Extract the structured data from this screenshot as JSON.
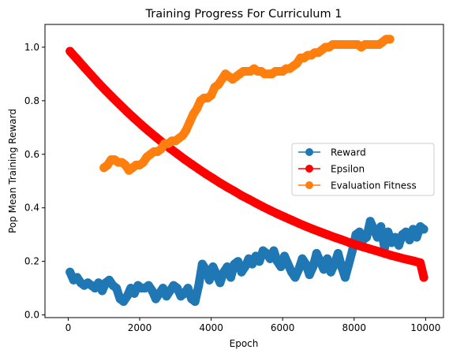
{
  "chart_data": {
    "type": "line",
    "title": "Training Progress For Curriculum 1",
    "xlabel": "Epoch",
    "ylabel": "Pop Mean Training Reward",
    "xlim": [
      -650,
      10500
    ],
    "ylim": [
      -0.01,
      1.085
    ],
    "xticks": [
      0,
      2000,
      4000,
      6000,
      8000,
      10000
    ],
    "xtick_labels": [
      "0",
      "2000",
      "4000",
      "6000",
      "8000",
      "10000"
    ],
    "yticks": [
      0.0,
      0.2,
      0.4,
      0.6,
      0.8,
      1.0
    ],
    "ytick_labels": [
      "0.0",
      "0.2",
      "0.4",
      "0.6",
      "0.8",
      "1.0"
    ],
    "grid": false,
    "legend_position": "center-right",
    "marker": "circle",
    "series": [
      {
        "name": "Reward",
        "color": "#1f77b4",
        "x": [
          50,
          150,
          250,
          350,
          450,
          550,
          650,
          750,
          850,
          950,
          1050,
          1150,
          1250,
          1350,
          1450,
          1550,
          1650,
          1750,
          1850,
          1950,
          2050,
          2150,
          2250,
          2350,
          2450,
          2550,
          2650,
          2750,
          2850,
          2950,
          3050,
          3150,
          3250,
          3350,
          3450,
          3550,
          3650,
          3750,
          3850,
          3950,
          4050,
          4150,
          4250,
          4350,
          4450,
          4550,
          4650,
          4750,
          4850,
          4950,
          5050,
          5150,
          5250,
          5350,
          5450,
          5550,
          5650,
          5750,
          5850,
          5950,
          6050,
          6150,
          6250,
          6350,
          6450,
          6550,
          6650,
          6750,
          6850,
          6950,
          7050,
          7150,
          7250,
          7350,
          7450,
          7550,
          7650,
          7750,
          7850,
          7950,
          8050,
          8150,
          8250,
          8350,
          8450,
          8550,
          8650,
          8750,
          8850,
          8950,
          9050,
          9150,
          9250,
          9350,
          9450,
          9550,
          9650,
          9750,
          9850,
          9950
        ],
        "y": [
          0.16,
          0.13,
          0.14,
          0.12,
          0.11,
          0.12,
          0.11,
          0.1,
          0.12,
          0.09,
          0.12,
          0.13,
          0.11,
          0.1,
          0.06,
          0.05,
          0.07,
          0.1,
          0.08,
          0.11,
          0.1,
          0.1,
          0.11,
          0.09,
          0.06,
          0.08,
          0.1,
          0.07,
          0.09,
          0.11,
          0.1,
          0.07,
          0.08,
          0.1,
          0.06,
          0.05,
          0.11,
          0.19,
          0.17,
          0.13,
          0.18,
          0.15,
          0.12,
          0.16,
          0.18,
          0.14,
          0.19,
          0.2,
          0.16,
          0.18,
          0.21,
          0.19,
          0.22,
          0.2,
          0.24,
          0.23,
          0.21,
          0.24,
          0.2,
          0.18,
          0.22,
          0.19,
          0.16,
          0.14,
          0.17,
          0.21,
          0.19,
          0.15,
          0.18,
          0.23,
          0.2,
          0.17,
          0.21,
          0.16,
          0.19,
          0.23,
          0.18,
          0.14,
          0.19,
          0.24,
          0.3,
          0.31,
          0.28,
          0.29,
          0.35,
          0.32,
          0.29,
          0.33,
          0.25,
          0.31,
          0.27,
          0.29,
          0.26,
          0.3,
          0.31,
          0.28,
          0.32,
          0.29,
          0.33,
          0.32
        ]
      },
      {
        "name": "Epsilon",
        "color": "#ff0000",
        "x": [
          50,
          250,
          450,
          650,
          850,
          1050,
          1250,
          1450,
          1650,
          1850,
          2050,
          2250,
          2450,
          2650,
          2850,
          3050,
          3250,
          3450,
          3650,
          3850,
          4050,
          4250,
          4450,
          4650,
          4850,
          5050,
          5250,
          5450,
          5650,
          5850,
          6050,
          6250,
          6450,
          6650,
          6850,
          7050,
          7250,
          7450,
          7650,
          7850,
          8050,
          8250,
          8450,
          8650,
          8850,
          9050,
          9250,
          9450,
          9650,
          9850,
          9950
        ],
        "y": [
          0.985,
          0.955,
          0.925,
          0.895,
          0.866,
          0.838,
          0.811,
          0.785,
          0.759,
          0.734,
          0.71,
          0.687,
          0.665,
          0.643,
          0.622,
          0.602,
          0.582,
          0.563,
          0.545,
          0.527,
          0.51,
          0.493,
          0.477,
          0.462,
          0.446,
          0.432,
          0.418,
          0.404,
          0.391,
          0.378,
          0.366,
          0.354,
          0.342,
          0.331,
          0.32,
          0.31,
          0.3,
          0.29,
          0.281,
          0.271,
          0.262,
          0.254,
          0.246,
          0.238,
          0.23,
          0.222,
          0.215,
          0.208,
          0.202,
          0.195,
          0.14
        ]
      },
      {
        "name": "Evaluation Fitness",
        "color": "#ff7f0e",
        "x": [
          1000,
          1100,
          1200,
          1300,
          1400,
          1500,
          1600,
          1700,
          1800,
          1900,
          2000,
          2100,
          2200,
          2300,
          2400,
          2500,
          2600,
          2700,
          2800,
          2900,
          3000,
          3100,
          3200,
          3300,
          3400,
          3500,
          3600,
          3700,
          3800,
          3900,
          4000,
          4100,
          4200,
          4300,
          4400,
          4500,
          4600,
          4700,
          4800,
          4900,
          5000,
          5100,
          5200,
          5300,
          5400,
          5500,
          5600,
          5700,
          5800,
          5900,
          6000,
          6100,
          6200,
          6300,
          6400,
          6500,
          6600,
          6700,
          6800,
          6900,
          7000,
          7100,
          7200,
          7300,
          7400,
          7500,
          7600,
          7700,
          7800,
          7900,
          8000,
          8100,
          8200,
          8300,
          8400,
          8500,
          8600,
          8700,
          8800,
          8900,
          9000
        ],
        "y": [
          0.55,
          0.56,
          0.58,
          0.58,
          0.57,
          0.57,
          0.56,
          0.54,
          0.55,
          0.56,
          0.56,
          0.57,
          0.59,
          0.6,
          0.61,
          0.61,
          0.62,
          0.64,
          0.64,
          0.65,
          0.65,
          0.66,
          0.67,
          0.69,
          0.72,
          0.75,
          0.77,
          0.8,
          0.81,
          0.81,
          0.82,
          0.85,
          0.86,
          0.88,
          0.9,
          0.89,
          0.88,
          0.89,
          0.9,
          0.91,
          0.91,
          0.91,
          0.92,
          0.91,
          0.91,
          0.9,
          0.9,
          0.9,
          0.91,
          0.91,
          0.91,
          0.92,
          0.92,
          0.93,
          0.94,
          0.96,
          0.96,
          0.97,
          0.97,
          0.98,
          0.98,
          0.99,
          1.0,
          1.0,
          1.01,
          1.01,
          1.01,
          1.01,
          1.01,
          1.01,
          1.01,
          1.01,
          1.0,
          1.01,
          1.01,
          1.01,
          1.01,
          1.01,
          1.02,
          1.03,
          1.03
        ]
      }
    ]
  }
}
